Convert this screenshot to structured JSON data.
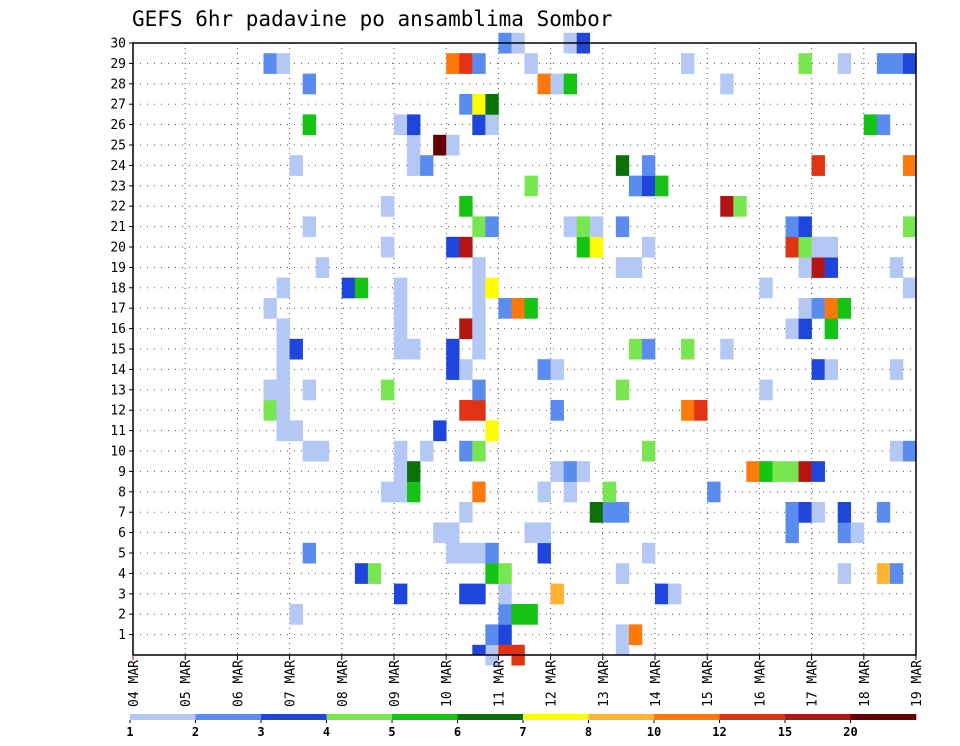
{
  "chart_data": {
    "type": "heatmap",
    "title": "GEFS 6hr padavine po ansamblima Sombor",
    "xlabel": "",
    "ylabel": "",
    "x_tick_labels": [
      "04 MAR",
      "05 MAR",
      "06 MAR",
      "07 MAR",
      "08 MAR",
      "09 MAR",
      "10 MAR",
      "11 MAR",
      "12 MAR",
      "13 MAR",
      "14 MAR",
      "15 MAR",
      "16 MAR",
      "17 MAR",
      "18 MAR",
      "19 MAR"
    ],
    "y_tick_labels": [
      "1",
      "2",
      "3",
      "4",
      "5",
      "6",
      "7",
      "8",
      "9",
      "10",
      "11",
      "12",
      "13",
      "14",
      "15",
      "16",
      "17",
      "18",
      "19",
      "20",
      "21",
      "22",
      "23",
      "24",
      "25",
      "26",
      "27",
      "28",
      "29",
      "30"
    ],
    "x_range_steps": [
      0,
      60
    ],
    "y_range_members": [
      0,
      30
    ],
    "steps_per_day": 4,
    "grid": true,
    "legend": {
      "placement": "bottom",
      "thresholds": [
        "1",
        "2",
        "3",
        "4",
        "5",
        "6",
        "7",
        "8",
        "10",
        "12",
        "15",
        "20"
      ],
      "colors": [
        "#b4c8f5",
        "#5a8cf0",
        "#1e46dc",
        "#78e650",
        "#14c314",
        "#0a700a",
        "#ffff00",
        "#ffb432",
        "#ff780a",
        "#e13214",
        "#b41414",
        "#640000"
      ]
    },
    "cells_format": "[member, time_step, color_class]",
    "cells": [
      [
        0,
        27,
        1
      ],
      [
        0,
        29,
        10
      ],
      [
        1,
        27,
        2
      ],
      [
        1,
        28,
        3
      ],
      [
        1,
        37,
        1
      ],
      [
        1,
        38,
        9
      ],
      [
        2,
        12,
        1
      ],
      [
        2,
        28,
        2
      ],
      [
        2,
        29,
        5
      ],
      [
        2,
        30,
        5
      ],
      [
        3,
        20,
        3
      ],
      [
        3,
        25,
        3
      ],
      [
        3,
        26,
        3
      ],
      [
        3,
        28,
        1
      ],
      [
        3,
        32,
        8
      ],
      [
        3,
        40,
        3
      ],
      [
        3,
        41,
        1
      ],
      [
        4,
        17,
        3
      ],
      [
        4,
        18,
        4
      ],
      [
        4,
        27,
        5
      ],
      [
        4,
        28,
        4
      ],
      [
        4,
        37,
        1
      ],
      [
        4,
        54,
        1
      ],
      [
        4,
        57,
        8
      ],
      [
        4,
        58,
        2
      ],
      [
        5,
        13,
        2
      ],
      [
        5,
        24,
        1
      ],
      [
        5,
        25,
        1
      ],
      [
        5,
        26,
        1
      ],
      [
        5,
        27,
        2
      ],
      [
        5,
        31,
        3
      ],
      [
        5,
        39,
        1
      ],
      [
        6,
        23,
        1
      ],
      [
        6,
        24,
        1
      ],
      [
        6,
        30,
        1
      ],
      [
        6,
        31,
        1
      ],
      [
        6,
        50,
        2
      ],
      [
        6,
        54,
        2
      ],
      [
        6,
        55,
        1
      ],
      [
        7,
        25,
        1
      ],
      [
        7,
        35,
        6
      ],
      [
        7,
        36,
        2
      ],
      [
        7,
        37,
        2
      ],
      [
        7,
        50,
        2
      ],
      [
        7,
        51,
        3
      ],
      [
        7,
        52,
        1
      ],
      [
        7,
        54,
        3
      ],
      [
        7,
        57,
        2
      ],
      [
        8,
        19,
        1
      ],
      [
        8,
        20,
        1
      ],
      [
        8,
        21,
        5
      ],
      [
        8,
        26,
        9
      ],
      [
        8,
        31,
        1
      ],
      [
        8,
        33,
        1
      ],
      [
        8,
        36,
        4
      ],
      [
        8,
        44,
        2
      ],
      [
        9,
        20,
        1
      ],
      [
        9,
        21,
        6
      ],
      [
        9,
        32,
        1
      ],
      [
        9,
        33,
        2
      ],
      [
        9,
        34,
        1
      ],
      [
        9,
        47,
        9
      ],
      [
        9,
        48,
        5
      ],
      [
        9,
        49,
        4
      ],
      [
        9,
        50,
        4
      ],
      [
        9,
        51,
        11
      ],
      [
        9,
        52,
        3
      ],
      [
        10,
        13,
        1
      ],
      [
        10,
        14,
        1
      ],
      [
        10,
        20,
        1
      ],
      [
        10,
        22,
        1
      ],
      [
        10,
        25,
        2
      ],
      [
        10,
        26,
        4
      ],
      [
        10,
        39,
        4
      ],
      [
        10,
        58,
        1
      ],
      [
        10,
        59,
        2
      ],
      [
        11,
        11,
        1
      ],
      [
        11,
        12,
        1
      ],
      [
        11,
        23,
        3
      ],
      [
        11,
        27,
        7
      ],
      [
        12,
        10,
        4
      ],
      [
        12,
        11,
        1
      ],
      [
        12,
        25,
        10
      ],
      [
        12,
        26,
        10
      ],
      [
        12,
        32,
        2
      ],
      [
        12,
        42,
        9
      ],
      [
        12,
        43,
        10
      ],
      [
        13,
        10,
        1
      ],
      [
        13,
        11,
        1
      ],
      [
        13,
        13,
        1
      ],
      [
        13,
        19,
        4
      ],
      [
        13,
        26,
        2
      ],
      [
        13,
        37,
        4
      ],
      [
        13,
        48,
        1
      ],
      [
        14,
        11,
        1
      ],
      [
        14,
        24,
        3
      ],
      [
        14,
        25,
        1
      ],
      [
        14,
        31,
        2
      ],
      [
        14,
        32,
        1
      ],
      [
        14,
        52,
        3
      ],
      [
        14,
        53,
        1
      ],
      [
        14,
        58,
        1
      ],
      [
        15,
        11,
        1
      ],
      [
        15,
        12,
        3
      ],
      [
        15,
        20,
        1
      ],
      [
        15,
        21,
        1
      ],
      [
        15,
        24,
        3
      ],
      [
        15,
        26,
        1
      ],
      [
        15,
        38,
        4
      ],
      [
        15,
        39,
        2
      ],
      [
        15,
        42,
        4
      ],
      [
        15,
        45,
        1
      ],
      [
        16,
        11,
        1
      ],
      [
        16,
        20,
        1
      ],
      [
        16,
        25,
        11
      ],
      [
        16,
        26,
        1
      ],
      [
        16,
        50,
        1
      ],
      [
        16,
        51,
        3
      ],
      [
        16,
        53,
        5
      ],
      [
        17,
        10,
        1
      ],
      [
        17,
        20,
        1
      ],
      [
        17,
        26,
        1
      ],
      [
        17,
        28,
        2
      ],
      [
        17,
        29,
        9
      ],
      [
        17,
        30,
        5
      ],
      [
        17,
        51,
        1
      ],
      [
        17,
        52,
        2
      ],
      [
        17,
        53,
        9
      ],
      [
        17,
        54,
        5
      ],
      [
        18,
        11,
        1
      ],
      [
        18,
        16,
        3
      ],
      [
        18,
        17,
        5
      ],
      [
        18,
        20,
        1
      ],
      [
        18,
        26,
        1
      ],
      [
        18,
        27,
        7
      ],
      [
        18,
        48,
        1
      ],
      [
        18,
        59,
        1
      ],
      [
        19,
        14,
        1
      ],
      [
        19,
        26,
        1
      ],
      [
        19,
        37,
        1
      ],
      [
        19,
        38,
        1
      ],
      [
        19,
        51,
        1
      ],
      [
        19,
        52,
        11
      ],
      [
        19,
        53,
        3
      ],
      [
        19,
        58,
        1
      ],
      [
        20,
        19,
        1
      ],
      [
        20,
        24,
        3
      ],
      [
        20,
        25,
        11
      ],
      [
        20,
        34,
        5
      ],
      [
        20,
        35,
        7
      ],
      [
        20,
        39,
        1
      ],
      [
        20,
        50,
        10
      ],
      [
        20,
        51,
        4
      ],
      [
        20,
        52,
        1
      ],
      [
        20,
        53,
        1
      ],
      [
        21,
        13,
        1
      ],
      [
        21,
        26,
        4
      ],
      [
        21,
        27,
        2
      ],
      [
        21,
        33,
        1
      ],
      [
        21,
        34,
        4
      ],
      [
        21,
        35,
        1
      ],
      [
        21,
        37,
        2
      ],
      [
        21,
        50,
        2
      ],
      [
        21,
        51,
        3
      ],
      [
        21,
        59,
        4
      ],
      [
        22,
        19,
        1
      ],
      [
        22,
        25,
        5
      ],
      [
        22,
        45,
        11
      ],
      [
        22,
        46,
        4
      ],
      [
        23,
        30,
        4
      ],
      [
        23,
        38,
        2
      ],
      [
        23,
        39,
        3
      ],
      [
        23,
        40,
        5
      ],
      [
        24,
        12,
        1
      ],
      [
        24,
        21,
        1
      ],
      [
        24,
        22,
        2
      ],
      [
        24,
        37,
        6
      ],
      [
        24,
        39,
        2
      ],
      [
        24,
        52,
        10
      ],
      [
        24,
        59,
        9
      ],
      [
        25,
        21,
        1
      ],
      [
        25,
        23,
        12
      ],
      [
        25,
        24,
        1
      ],
      [
        26,
        13,
        5
      ],
      [
        26,
        20,
        1
      ],
      [
        26,
        21,
        3
      ],
      [
        26,
        26,
        3
      ],
      [
        26,
        27,
        1
      ],
      [
        26,
        56,
        5
      ],
      [
        26,
        57,
        2
      ],
      [
        27,
        25,
        2
      ],
      [
        27,
        26,
        7
      ],
      [
        27,
        27,
        6
      ],
      [
        28,
        13,
        2
      ],
      [
        28,
        31,
        9
      ],
      [
        28,
        32,
        1
      ],
      [
        28,
        33,
        5
      ],
      [
        28,
        45,
        1
      ],
      [
        29,
        10,
        2
      ],
      [
        29,
        11,
        1
      ],
      [
        29,
        24,
        9
      ],
      [
        29,
        25,
        10
      ],
      [
        29,
        26,
        2
      ],
      [
        29,
        30,
        1
      ],
      [
        29,
        42,
        1
      ],
      [
        29,
        51,
        4
      ],
      [
        29,
        54,
        1
      ],
      [
        29,
        57,
        2
      ],
      [
        29,
        58,
        2
      ],
      [
        29,
        59,
        3
      ],
      [
        30,
        28,
        2
      ],
      [
        30,
        29,
        1
      ],
      [
        30,
        33,
        1
      ],
      [
        30,
        34,
        3
      ]
    ],
    "cells_below_axis": [
      [
        26,
        3
      ],
      [
        28,
        10
      ],
      [
        37,
        1
      ]
    ]
  }
}
